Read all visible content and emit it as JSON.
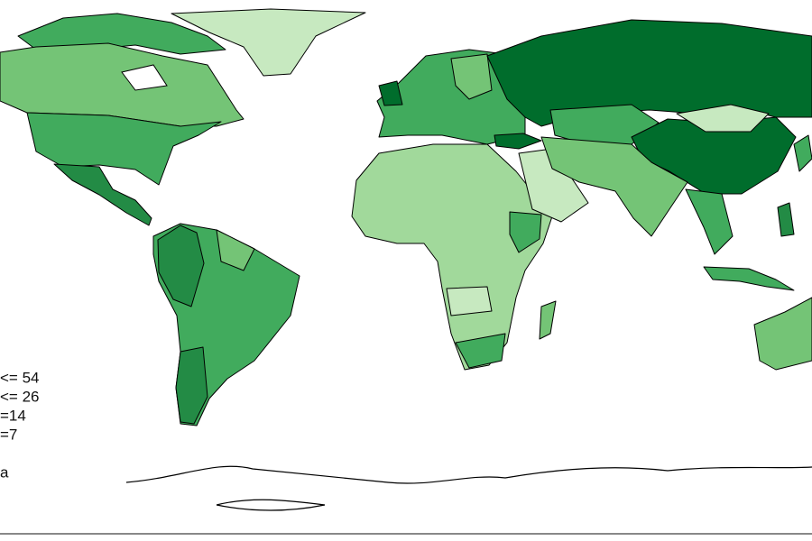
{
  "legend": {
    "items": [
      "<= 54",
      "<= 26",
      "=14",
      "=7",
      "a"
    ]
  }
}
